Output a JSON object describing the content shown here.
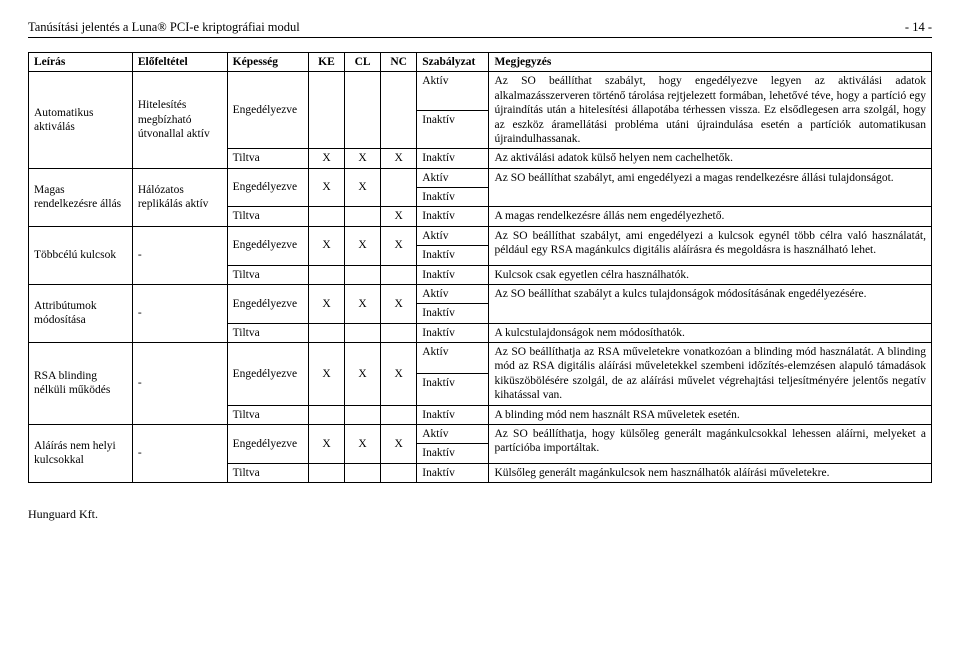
{
  "header": {
    "left": "Tanúsítási jelentés a Luna® PCI-e kriptográfiai modul",
    "right": "- 14 -"
  },
  "columns": {
    "c0": "Leírás",
    "c1": "Előfeltétel",
    "c2": "Képesség",
    "c3": "KE",
    "c4": "CL",
    "c5": "NC",
    "c6": "Szabályzat",
    "c7": "Megjegyzés"
  },
  "marks": {
    "x": "X"
  },
  "states": {
    "aktiv": "Aktív",
    "inaktiv": "Inaktív"
  },
  "capabilities": {
    "eng": "Engedélyezve",
    "tilt": "Tiltva"
  },
  "rows": {
    "r1": {
      "leiras": "Automatikus aktiválás",
      "elo": "Hitelesítés megbízható útvonallal aktív",
      "megj_eng": "Az SO beállíthat szabályt, hogy engedélyezve legyen az aktiválási adatok alkalmazásszerveren történő tárolása rejtjelezett formában, lehetővé téve, hogy a partíció egy újraindítás után a hitelesítési állapotába térhessen vissza. Ez elsődlegesen arra szolgál, hogy az eszköz áramellátási probléma utáni újraindulása esetén a partíciók automatikusan újraindulhassanak.",
      "megj_tilt": "Az aktiválási adatok külső helyen nem cachelhetők."
    },
    "r2": {
      "leiras": "Magas rendelkezésre állás",
      "elo": "Hálózatos replikálás aktív",
      "megj_eng": "Az SO beállíthat szabályt, ami engedélyezi a magas rendelkezésre állási tulajdonságot.",
      "megj_tilt": "A magas rendelkezésre állás nem engedélyezhető."
    },
    "r3": {
      "leiras": "Többcélú kulcsok",
      "elo": "-",
      "megj_eng": "Az SO beállíthat szabályt, ami engedélyezi a kulcsok egynél több célra való használatát,\npéldául egy RSA magánkulcs digitális aláírásra és megoldásra is használható lehet.",
      "megj_tilt": "Kulcsok csak egyetlen célra használhatók."
    },
    "r4": {
      "leiras": "Attribútumok módosítása",
      "elo": "-",
      "megj_eng": "Az SO beállíthat szabályt a kulcs tulajdonságok módosításának engedélyezésére.",
      "megj_tilt": "A kulcstulajdonságok nem módosíthatók."
    },
    "r5": {
      "leiras": "RSA blinding nélküli működés",
      "elo": "-",
      "megj_eng": "Az SO beállíthatja az RSA műveletekre vonatkozóan a blinding mód használatát. A blinding mód az RSA digitális aláírási műveletekkel szembeni időzítés-elemzésen alapuló támadások kiküszöbölésére szolgál, de az aláírási művelet végrehajtási teljesítményére jelentős negatív kihatással van.",
      "megj_tilt": "A blinding mód nem használt RSA műveletek esetén."
    },
    "r6": {
      "leiras": "Aláírás nem helyi kulcsokkal",
      "elo": "-",
      "megj_eng": "Az SO beállíthatja, hogy külsőleg generált magánkulcsokkal lehessen aláírni, melyeket a partícióba importáltak.",
      "megj_tilt": "Külsőleg generált magánkulcsok nem használhatók aláírási műveletekre."
    }
  },
  "footer": "Hunguard Kft."
}
